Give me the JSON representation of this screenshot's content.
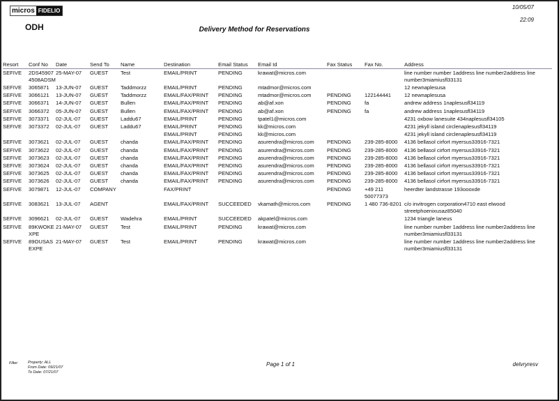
{
  "header": {
    "logo_left": "micros",
    "logo_right": "FIDELIO",
    "property": "ODH",
    "title": "Delivery Method for Reservations",
    "date": "10/05/07",
    "time": "22:09"
  },
  "columns": [
    "Resort",
    "Conf No",
    "Date",
    "Send To",
    "Name",
    "Destination",
    "Email Status",
    "Email Id",
    "Fax Status",
    "Fax No.",
    "Address"
  ],
  "rows": [
    [
      "SEFIVE",
      "2DS45907 4508ADSM",
      "25-MAY-07",
      "GUEST",
      "Test",
      "EMAIL/PRINT",
      "PENDING",
      "krawat@micros.com",
      "",
      "",
      "line number number 1address line number2address line number3miamiusfl33131"
    ],
    [
      "SEFIVE",
      "3065871",
      "13-JUN-07",
      "GUEST",
      "Taddmorzz",
      "EMAIL/PRINT",
      "PENDING",
      "mtadmor@micros.com",
      "",
      "",
      "12 newnaplesusa"
    ],
    [
      "SEFIVE",
      "3066121",
      "13-JUN-07",
      "GUEST",
      "Taddmorzz",
      "EMAIL/FAX/PRINT",
      "PENDING",
      "mtadmor@micros.com",
      "PENDING",
      "122144441",
      "12 newnaplesusa"
    ],
    [
      "SEFIVE",
      "3066371",
      "14-JUN-07",
      "GUEST",
      "Bullen",
      "EMAIL/FAX/PRINT",
      "PENDING",
      "ab@af.xon",
      "PENDING",
      "fa",
      "andrew address 1naplesusfl34119"
    ],
    [
      "SEFIVE",
      "3066372",
      "05-JUN-07",
      "GUEST",
      "Bullen",
      "EMAIL/FAX/PRINT",
      "PENDING",
      "ab@af.xon",
      "PENDING",
      "fa",
      "andrew address 1naplesusfl34119"
    ],
    [
      "SEFIVE",
      "3073371",
      "02-JUL-07",
      "GUEST",
      "Laddu67",
      "EMAIL/PRINT",
      "PENDING",
      "tpatel1@micros.com",
      "",
      "",
      "4231 oxbow lanesuite 434naplesusfl34105"
    ],
    [
      "SEFIVE",
      "3073372",
      "02-JUL-07",
      "GUEST",
      "Laddu67",
      "EMAIL/PRINT",
      "PENDING",
      "kk@micros.com",
      "",
      "",
      "4231 jekyll island circlenaplesusfl34119"
    ],
    [
      "",
      "",
      "",
      "",
      "",
      "EMAIL/PRINT",
      "PENDING",
      "kk@micros.com",
      "",
      "",
      "4231 jekyll island circlenaplesusfl34119"
    ],
    [
      "SEFIVE",
      "3073621",
      "02-JUL-07",
      "GUEST",
      "chanda",
      "EMAIL/FAX/PRINT",
      "PENDING",
      "asurendra@micros.com",
      "PENDING",
      "239-285-8000",
      "4136 bellasol cirfort myersus33916-7321"
    ],
    [
      "SEFIVE",
      "3073622",
      "02-JUL-07",
      "GUEST",
      "chanda",
      "EMAIL/FAX/PRINT",
      "PENDING",
      "asurendra@micros.com",
      "PENDING",
      "239-285-8000",
      "4136 bellasol cirfort myersus33916-7321"
    ],
    [
      "SEFIVE",
      "3073623",
      "02-JUL-07",
      "GUEST",
      "chanda",
      "EMAIL/FAX/PRINT",
      "PENDING",
      "asurendra@micros.com",
      "PENDING",
      "239-285-8000",
      "4136 bellasol cirfort myersus33916-7321"
    ],
    [
      "SEFIVE",
      "3073624",
      "02-JUL-07",
      "GUEST",
      "chanda",
      "EMAIL/FAX/PRINT",
      "PENDING",
      "asurendra@micros.com",
      "PENDING",
      "239-285-8000",
      "4136 bellasol cirfort myersus33916-7321"
    ],
    [
      "SEFIVE",
      "3073625",
      "02-JUL-07",
      "GUEST",
      "chanda",
      "EMAIL/FAX/PRINT",
      "PENDING",
      "asurendra@micros.com",
      "PENDING",
      "239-285-8000",
      "4136 bellasol cirfort myersus33916-7321"
    ],
    [
      "SEFIVE",
      "3073626",
      "02-JUL-07",
      "GUEST",
      "chanda",
      "EMAIL/FAX/PRINT",
      "PENDING",
      "asurendra@micros.com",
      "PENDING",
      "239-285-8000",
      "4136 bellasol cirfort myersus33916-7321"
    ],
    [
      "SEFIVE",
      "3079871",
      "12-JUL-07",
      "COMPANY",
      "",
      "FAX/PRINT",
      "",
      "",
      "PENDING",
      "+49 211 50077373",
      "heerdter landstrasse 193oooxde"
    ],
    [
      "SEFIVE",
      "3083621",
      "13-JUL-07",
      "AGENT",
      "",
      "EMAIL/FAX/PRINT",
      "SUCCEEDED",
      "vkamath@micros.com",
      "PENDING",
      "1 480 736-8201",
      "c/o invitrogen corporation4710 east elwood streetphoenixusaz85040"
    ],
    [
      "SEFIVE",
      "3096621",
      "02-JUL-07",
      "GUEST",
      "Wadehra",
      "EMAIL/PRINT",
      "SUCCEEDED",
      "akpatel@micros.com",
      "",
      "",
      "1234 triangle laneus"
    ],
    [
      "SEFIVE",
      "89KWOKE XPE",
      "21-MAY-07",
      "GUEST",
      "Test",
      "EMAIL/PRINT",
      "PENDING",
      "krawat@micros.com",
      "",
      "",
      "line number number 1address line number2address line number3miamiusfl33131"
    ],
    [
      "SEFIVE",
      "89OUSAS EXPE",
      "21-MAY-07",
      "GUEST",
      "Test",
      "EMAIL/PRINT",
      "PENDING",
      "krawat@micros.com",
      "",
      "",
      "line number number 1address line number2address line number3miamiusfl33131"
    ]
  ],
  "footer": {
    "filter_label": "Filter",
    "property": "Property:  ALL",
    "from_date": "From Date:  09/21/07",
    "to_date": "To Date:  07/21/07",
    "page": "Page 1 of 1",
    "report_code": "delvryresv"
  }
}
